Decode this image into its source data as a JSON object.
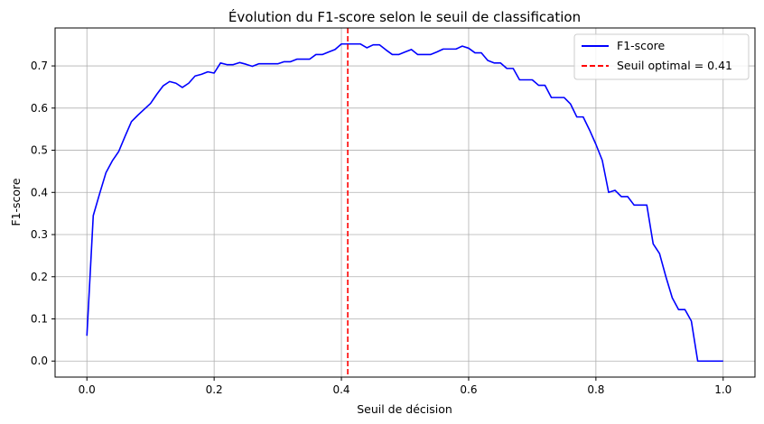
{
  "chart_data": {
    "type": "line",
    "title": "Évolution du F1-score selon le seuil de classification",
    "xlabel": "Seuil de décision",
    "ylabel": "F1-score",
    "xlim": [
      -0.05,
      1.05
    ],
    "ylim": [
      -0.038,
      0.79
    ],
    "xticks": [
      0.0,
      0.2,
      0.4,
      0.6,
      0.8,
      1.0
    ],
    "xtick_labels": [
      "0.0",
      "0.2",
      "0.4",
      "0.6",
      "0.8",
      "1.0"
    ],
    "yticks": [
      0.0,
      0.1,
      0.2,
      0.3,
      0.4,
      0.5,
      0.6,
      0.7
    ],
    "ytick_labels": [
      "0.0",
      "0.1",
      "0.2",
      "0.3",
      "0.4",
      "0.5",
      "0.6",
      "0.7"
    ],
    "grid": true,
    "legend_position": "top-right",
    "series": [
      {
        "name": "F1-score",
        "color": "#0000ff",
        "style": "solid",
        "x": [
          0.0,
          0.01,
          0.02,
          0.03,
          0.04,
          0.05,
          0.06,
          0.07,
          0.08,
          0.09,
          0.1,
          0.11,
          0.12,
          0.13,
          0.14,
          0.15,
          0.16,
          0.17,
          0.18,
          0.19,
          0.2,
          0.21,
          0.22,
          0.23,
          0.24,
          0.25,
          0.26,
          0.27,
          0.28,
          0.29,
          0.3,
          0.31,
          0.32,
          0.33,
          0.34,
          0.35,
          0.36,
          0.37,
          0.38,
          0.39,
          0.4,
          0.41,
          0.42,
          0.43,
          0.44,
          0.45,
          0.46,
          0.47,
          0.48,
          0.49,
          0.5,
          0.51,
          0.52,
          0.53,
          0.54,
          0.55,
          0.56,
          0.57,
          0.58,
          0.59,
          0.6,
          0.61,
          0.62,
          0.63,
          0.64,
          0.65,
          0.66,
          0.67,
          0.68,
          0.69,
          0.7,
          0.71,
          0.72,
          0.73,
          0.74,
          0.75,
          0.76,
          0.77,
          0.78,
          0.79,
          0.8,
          0.81,
          0.82,
          0.83,
          0.84,
          0.85,
          0.86,
          0.87,
          0.88,
          0.89,
          0.9,
          0.91,
          0.92,
          0.93,
          0.94,
          0.95,
          0.96,
          0.97,
          0.98,
          0.99,
          1.0
        ],
        "y": [
          0.06,
          0.345,
          0.397,
          0.447,
          0.475,
          0.497,
          0.533,
          0.568,
          0.583,
          0.597,
          0.611,
          0.633,
          0.653,
          0.663,
          0.659,
          0.649,
          0.659,
          0.676,
          0.68,
          0.686,
          0.683,
          0.707,
          0.703,
          0.703,
          0.708,
          0.704,
          0.699,
          0.705,
          0.705,
          0.705,
          0.705,
          0.71,
          0.71,
          0.716,
          0.716,
          0.716,
          0.727,
          0.727,
          0.733,
          0.739,
          0.752,
          0.752,
          0.752,
          0.752,
          0.743,
          0.75,
          0.75,
          0.738,
          0.727,
          0.727,
          0.733,
          0.739,
          0.727,
          0.727,
          0.727,
          0.733,
          0.74,
          0.74,
          0.74,
          0.747,
          0.742,
          0.731,
          0.731,
          0.713,
          0.707,
          0.707,
          0.694,
          0.694,
          0.667,
          0.667,
          0.667,
          0.654,
          0.654,
          0.625,
          0.625,
          0.625,
          0.61,
          0.579,
          0.579,
          0.548,
          0.514,
          0.476,
          0.4,
          0.405,
          0.39,
          0.39,
          0.37,
          0.37,
          0.37,
          0.278,
          0.255,
          0.2,
          0.15,
          0.122,
          0.122,
          0.095,
          0.0,
          0.0,
          0.0,
          0.0,
          0.0
        ]
      },
      {
        "name": "Seuil optimal = 0.41",
        "color": "#ff0000",
        "style": "dashed",
        "type": "vline",
        "x_value": 0.41
      }
    ]
  }
}
